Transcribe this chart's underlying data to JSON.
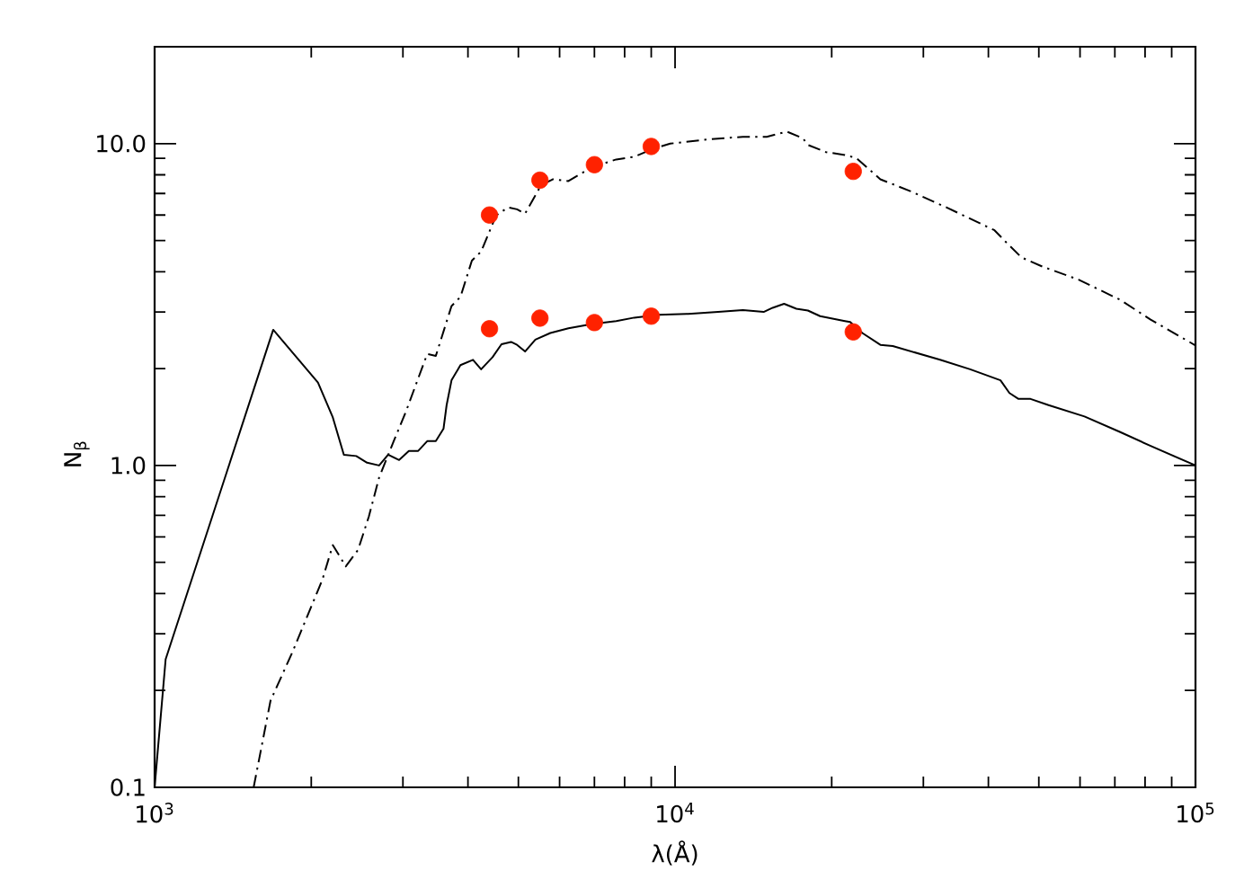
{
  "chart_data": {
    "type": "line",
    "xlabel": "λ(Å)",
    "ylabel": "N$_{β}$",
    "log": "xy",
    "xlim": [
      1000,
      100000
    ],
    "ylim": [
      0.1,
      20
    ],
    "xticks": [
      {
        "value": 1000,
        "label": "10$^{3}$"
      },
      {
        "value": 10000,
        "label": "10$^{4}$"
      },
      {
        "value": 100000,
        "label": "10$^{5}$"
      }
    ],
    "yticks": [
      0.1,
      {
        "value": 1,
        "label": "1.0"
      },
      {
        "value": 10,
        "label": "10.0"
      }
    ],
    "series": [
      {
        "color": "#000000",
        "line_style": "solid",
        "marker": "none",
        "x": [
          1000,
          1050,
          1690,
          2060,
          2200,
          2310,
          2440,
          2560,
          2700,
          2810,
          2950,
          3080,
          3210,
          3340,
          3470,
          3590,
          3640,
          3720,
          3870,
          4090,
          4240,
          4460,
          4640,
          4840,
          4970,
          5150,
          5390,
          5760,
          6240,
          6930,
          7710,
          8350,
          9290,
          10600,
          12100,
          13500,
          14800,
          15400,
          16200,
          17100,
          18000,
          19000,
          21200,
          21700,
          22900,
          24800,
          26200,
          32300,
          36900,
          42200,
          43900,
          45700,
          48200,
          52200,
          61200,
          71700,
          82000,
          100000
        ],
        "values": [
          0.1,
          0.25,
          2.64,
          1.81,
          1.41,
          1.08,
          1.07,
          1.02,
          1.0,
          1.08,
          1.04,
          1.11,
          1.11,
          1.19,
          1.19,
          1.3,
          1.54,
          1.84,
          2.05,
          2.13,
          1.99,
          2.17,
          2.38,
          2.42,
          2.37,
          2.26,
          2.46,
          2.58,
          2.67,
          2.75,
          2.81,
          2.88,
          2.94,
          2.96,
          3.0,
          3.04,
          3.0,
          3.09,
          3.18,
          3.07,
          3.03,
          2.91,
          2.81,
          2.79,
          2.58,
          2.37,
          2.35,
          2.13,
          1.99,
          1.84,
          1.68,
          1.61,
          1.61,
          1.54,
          1.42,
          1.27,
          1.15,
          1.0
        ]
      },
      {
        "color": "#000000",
        "line_style": "dashdot",
        "marker": "none",
        "x": [
          1550,
          1670,
          1840,
          2100,
          2200,
          2330,
          2460,
          2580,
          2700,
          2880,
          3040,
          3340,
          3470,
          3720,
          3870,
          4070,
          4240,
          4360,
          4530,
          4780,
          4970,
          5150,
          5530,
          5830,
          6240,
          6930,
          7710,
          8350,
          9040,
          9790,
          11500,
          13500,
          15000,
          16400,
          17600,
          18000,
          19500,
          21200,
          22300,
          24800,
          28300,
          33200,
          41100,
          43300,
          46300,
          50800,
          59600,
          71700,
          82000,
          100000
        ],
        "values": [
          0.1,
          0.186,
          0.263,
          0.441,
          0.566,
          0.486,
          0.547,
          0.694,
          0.917,
          1.19,
          1.47,
          2.22,
          2.19,
          3.13,
          3.34,
          4.33,
          4.62,
          5.15,
          5.98,
          6.34,
          6.25,
          6.06,
          7.43,
          7.75,
          7.65,
          8.45,
          8.93,
          9.1,
          9.62,
          10.0,
          10.3,
          10.5,
          10.5,
          10.9,
          10.4,
          9.91,
          9.41,
          9.22,
          9.02,
          7.75,
          7.12,
          6.34,
          5.38,
          4.93,
          4.43,
          4.15,
          3.78,
          3.27,
          2.84,
          2.36
        ]
      },
      {
        "type": "scatter",
        "color": "#ff2200",
        "marker": "circle",
        "x": [
          4400,
          5500,
          7000,
          9000,
          22000
        ],
        "values": [
          6.0,
          7.7,
          8.6,
          9.8,
          8.2
        ]
      },
      {
        "type": "scatter",
        "color": "#ff2200",
        "marker": "circle",
        "x": [
          4400,
          5500,
          7000,
          9000,
          22000
        ],
        "values": [
          2.66,
          2.87,
          2.78,
          2.91,
          2.6
        ]
      }
    ]
  }
}
